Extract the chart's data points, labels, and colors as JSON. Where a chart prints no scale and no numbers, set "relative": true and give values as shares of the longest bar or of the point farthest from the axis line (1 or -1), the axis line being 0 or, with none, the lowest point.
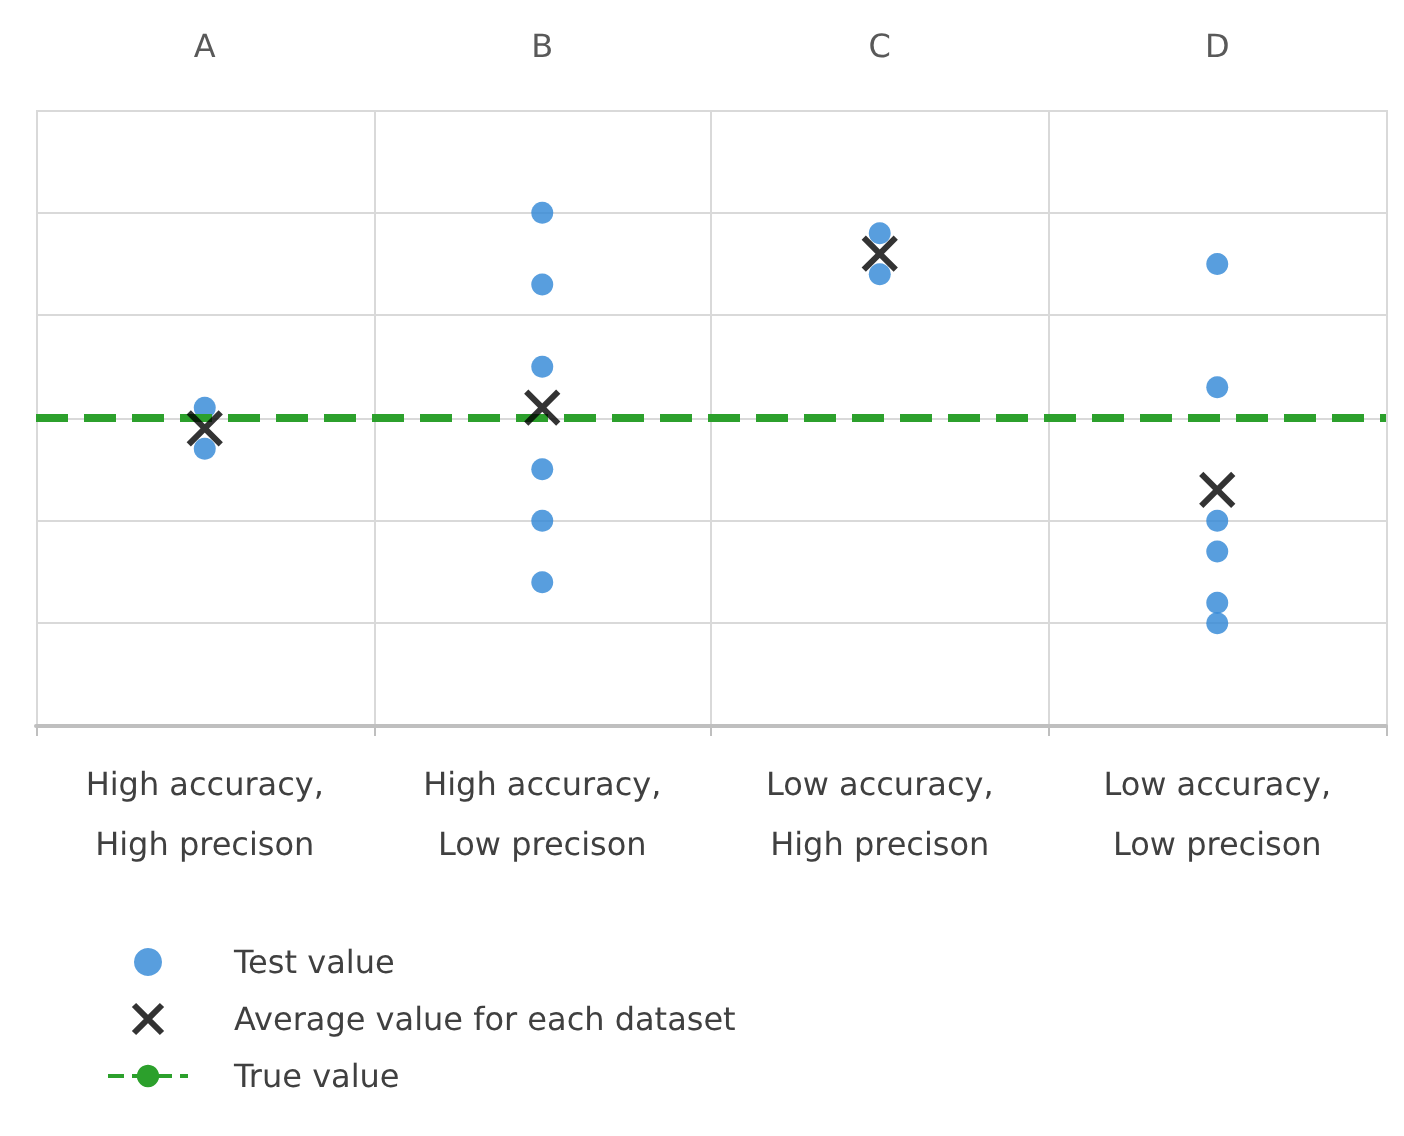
{
  "chart_data": {
    "type": "scatter",
    "relative": true,
    "categories": [
      "A",
      "B",
      "C",
      "D"
    ],
    "annotations": [
      "High accuracy,\nHigh precison",
      "High accuracy,\nLow precison",
      "Low accuracy,\nHigh precison",
      "Low accuracy,\nLow precison"
    ],
    "series": [
      {
        "name": "Test value",
        "color": "#2e86d6",
        "marker": "circle",
        "x": [
          "A",
          "A",
          "A",
          "B",
          "B",
          "B",
          "B",
          "B",
          "B",
          "C",
          "C",
          "C",
          "D",
          "D",
          "D",
          "D",
          "D",
          "D"
        ],
        "values": [
          0.62,
          null,
          0.54,
          1,
          0.86,
          0.7,
          0.5,
          0.4,
          0.28,
          0.96,
          null,
          0.88,
          0.9,
          0.66,
          0.4,
          0.34,
          0.24,
          0.2
        ]
      },
      {
        "name": "Average value for each dataset",
        "color": "#000000",
        "marker": "cross",
        "x": [
          "A",
          "B",
          "C",
          "D"
        ],
        "values": [
          0.58,
          0.62,
          0.92,
          0.46
        ]
      }
    ],
    "ref_lines": [
      {
        "axis": "y",
        "value": 0.6,
        "label": "True value",
        "color": "#2ca02c",
        "line_style": "dashed"
      }
    ],
    "grid": true,
    "legend": "bottom"
  }
}
